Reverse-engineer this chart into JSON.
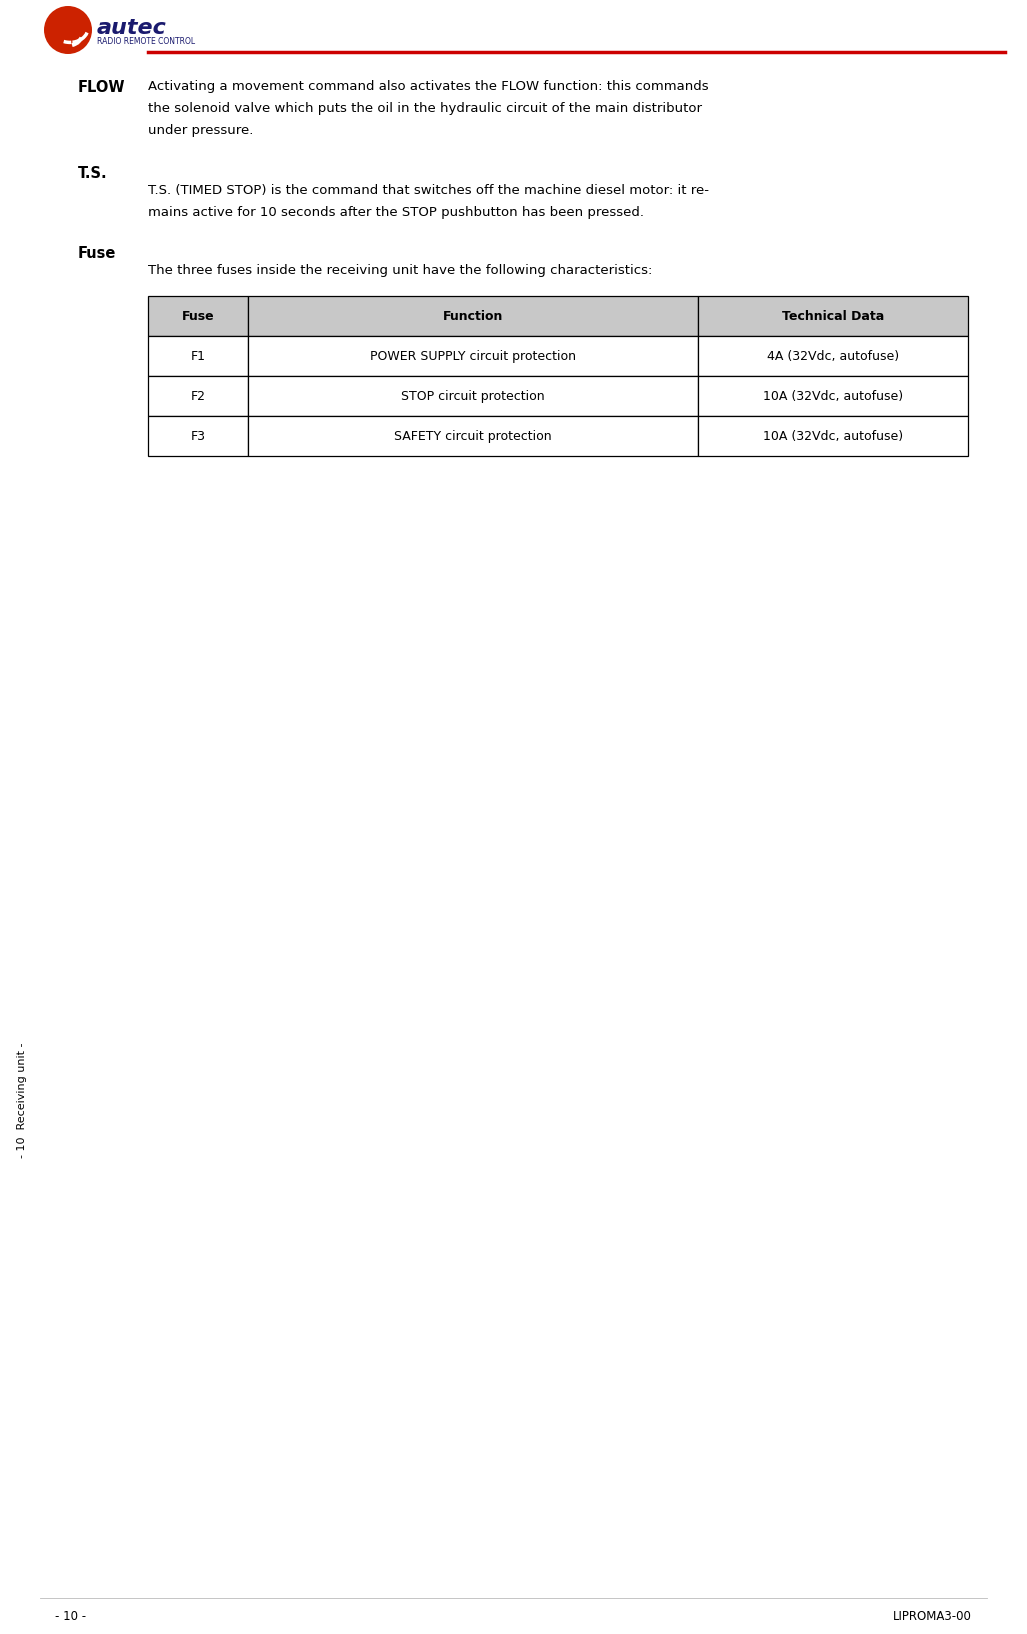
{
  "page_width": 10.27,
  "page_height": 16.34,
  "dpi": 100,
  "bg_color": "#ffffff",
  "header_line_color": "#cc0000",
  "logo_text": "autec",
  "logo_subtext": "RADIO REMOTE CONTROL",
  "section_flow_title": "FLOW",
  "section_flow_line1": "Activating a movement command also activates the FLOW function: this commands",
  "section_flow_line2": "the solenoid valve which puts the oil in the hydraulic circuit of the main distributor",
  "section_flow_line3": "under pressure.",
  "section_ts_title": "T.S.",
  "section_ts_line1": "T.S. (TIMED STOP) is the command that switches off the machine diesel motor: it re-",
  "section_ts_line2": "mains active for 10 seconds after the STOP pushbutton has been pressed.",
  "section_fuse_title": "Fuse",
  "section_fuse_intro": "The three fuses inside the receiving unit have the following characteristics:",
  "table_headers": [
    "Fuse",
    "Function",
    "Technical Data"
  ],
  "table_rows": [
    [
      "F1",
      "POWER SUPPLY circuit protection",
      "4A (32Vdc, autofuse)"
    ],
    [
      "F2",
      "STOP circuit protection",
      "10A (32Vdc, autofuse)"
    ],
    [
      "F3",
      "SAFETY circuit protection",
      "10A (32Vdc, autofuse)"
    ]
  ],
  "footer_left": "- 10 -",
  "footer_right": "LIPROMA3-00",
  "side_text": "- 10  Receiving unit -",
  "text_color": "#000000",
  "table_border_color": "#000000",
  "table_header_bg": "#c8c8c8",
  "logo_circle_color": "#cc2200",
  "logo_text_color": "#1a1a6e",
  "logo_subtext_color": "#1a1a6e"
}
